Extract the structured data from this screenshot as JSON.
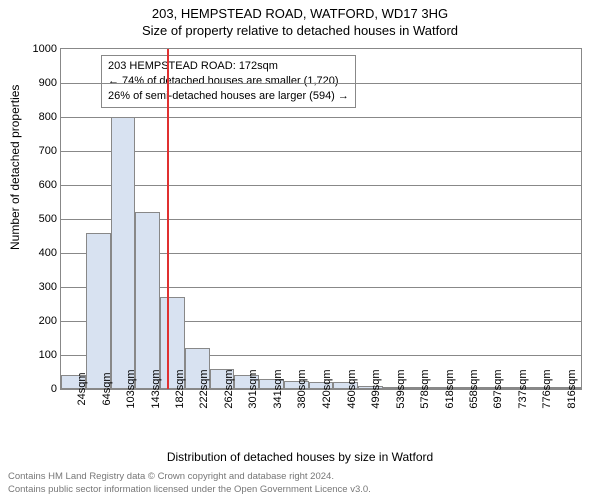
{
  "title_main": "203, HEMPSTEAD ROAD, WATFORD, WD17 3HG",
  "title_sub": "Size of property relative to detached houses in Watford",
  "yaxis_label": "Number of detached properties",
  "xaxis_label": "Distribution of detached houses by size in Watford",
  "footer_line1": "Contains HM Land Registry data © Crown copyright and database right 2024.",
  "footer_line2": "Contains public sector information licensed under the Open Government Licence v3.0.",
  "callout": {
    "line1": "203 HEMPSTEAD ROAD: 172sqm",
    "line2": "← 74% of detached houses are smaller (1,720)",
    "line3": "26% of semi-detached houses are larger (594) →",
    "border_color": "#888888",
    "font_size": 11
  },
  "chart": {
    "type": "histogram",
    "background_color": "#ffffff",
    "bar_fill": "#d8e2f1",
    "bar_border": "#888888",
    "grid_color": "#888888",
    "refline_color": "#e03030",
    "refline_value": 172,
    "ylim": [
      0,
      1000
    ],
    "ytick_step": 100,
    "x_min": 0,
    "x_max": 840,
    "bin_width": 40,
    "values": [
      40,
      460,
      800,
      520,
      270,
      120,
      60,
      40,
      30,
      25,
      20,
      20,
      10,
      5,
      5,
      5,
      3,
      2,
      2,
      2,
      2
    ],
    "xticks": [
      24,
      64,
      103,
      143,
      182,
      222,
      262,
      301,
      341,
      380,
      420,
      460,
      499,
      539,
      578,
      618,
      658,
      697,
      737,
      776,
      816
    ],
    "xtick_suffix": "sqm",
    "bar_width_ratio": 1.0,
    "font_size_ticks": 11
  }
}
